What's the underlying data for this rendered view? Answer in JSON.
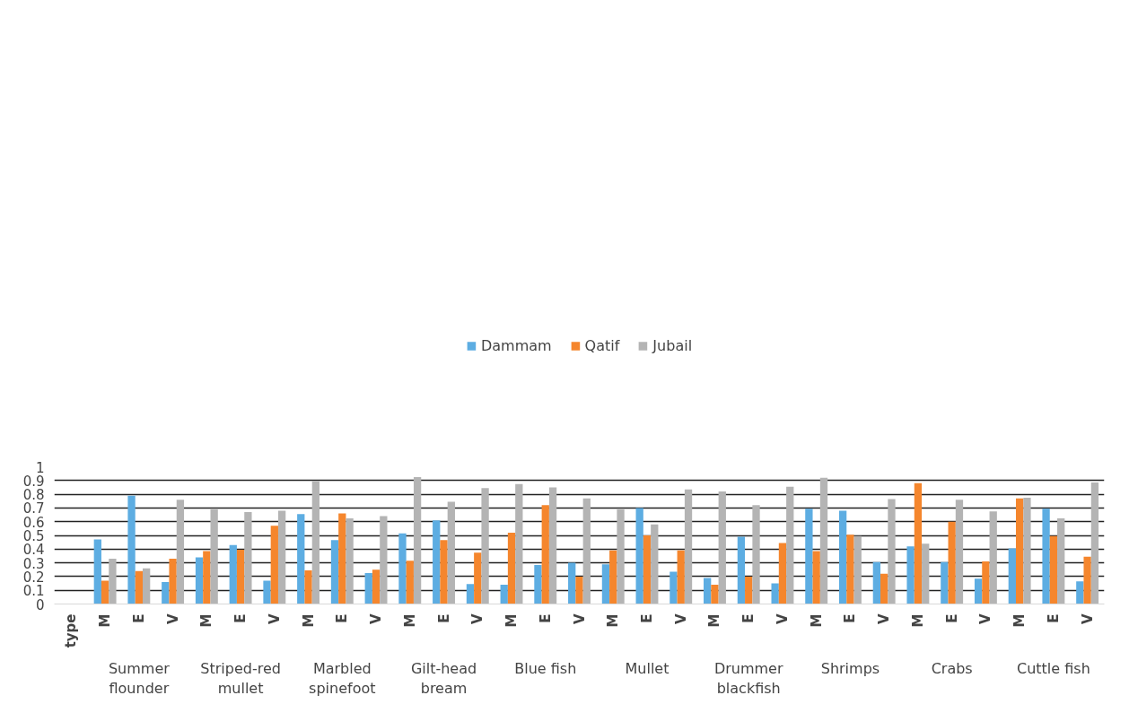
{
  "chart_data": {
    "type": "bar",
    "categories": [
      "type",
      "M",
      "E",
      "V",
      "M",
      "E",
      "V",
      "M",
      "E",
      "V",
      "M",
      "E",
      "V",
      "M",
      "E",
      "V",
      "M",
      "E",
      "V",
      "M",
      "E",
      "V",
      "M",
      "E",
      "V",
      "M",
      "E",
      "V",
      "M",
      "E",
      "V"
    ],
    "series": [
      {
        "name": "Dammam",
        "color": "#5dade2",
        "values": [
          null,
          0.47,
          0.79,
          0.16,
          0.34,
          0.43,
          0.17,
          0.655,
          0.465,
          0.225,
          0.515,
          0.61,
          0.145,
          0.14,
          0.285,
          0.3,
          0.29,
          0.7,
          0.235,
          0.19,
          0.49,
          0.15,
          0.695,
          0.68,
          0.305,
          0.42,
          0.305,
          0.185,
          0.405,
          0.695,
          0.165
        ]
      },
      {
        "name": "Qatif",
        "color": "#f5862d",
        "values": [
          null,
          0.17,
          0.24,
          0.33,
          0.385,
          0.395,
          0.57,
          0.245,
          0.66,
          0.25,
          0.315,
          0.465,
          0.375,
          0.52,
          0.72,
          0.2,
          0.39,
          0.5,
          0.39,
          0.14,
          0.2,
          0.445,
          0.385,
          0.505,
          0.22,
          0.88,
          0.6,
          0.31,
          0.77,
          0.495,
          0.345
        ]
      },
      {
        "name": "Jubail",
        "color": "#b4b4b4",
        "values": [
          null,
          0.33,
          0.26,
          0.76,
          0.69,
          0.67,
          0.68,
          0.895,
          0.625,
          0.64,
          0.925,
          0.745,
          0.845,
          0.875,
          0.85,
          0.77,
          0.69,
          0.58,
          0.835,
          0.82,
          0.72,
          0.855,
          0.92,
          0.495,
          0.765,
          0.44,
          0.76,
          0.675,
          0.775,
          0.625,
          0.885
        ]
      }
    ],
    "annotations": [
      "Summer flounder",
      "Striped-red mullet",
      "Marbled spinefoot",
      "Gilt-head bream",
      "Blue fish",
      "Mullet",
      "Drummer blackfish",
      "Shrimps",
      "Crabs",
      "Cuttle fish"
    ],
    "ylim": [
      0,
      1
    ],
    "yticks": [
      0,
      0.1,
      0.2,
      0.3,
      0.4,
      0.5,
      0.6,
      0.7,
      0.8,
      0.9,
      1
    ],
    "grid": "y",
    "legend": "top"
  }
}
